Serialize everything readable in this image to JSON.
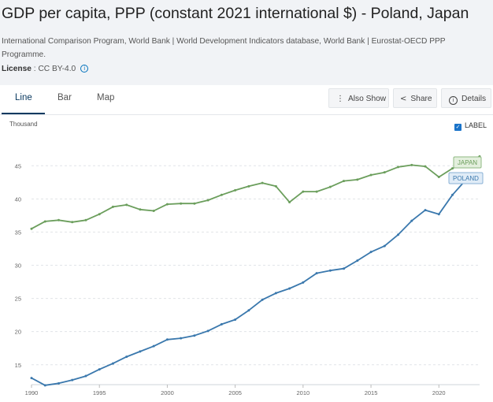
{
  "header": {
    "title": "GDP per capita, PPP (constant 2021 international $) - Poland, Japan",
    "source": "International Comparison Program, World Bank | World Development Indicators database, World Bank | Eurostat-OECD PPP Programme.",
    "license_label": "License",
    "license_value": " : CC BY-4.0",
    "info_glyph": "i"
  },
  "tabs": [
    "Line",
    "Bar",
    "Map"
  ],
  "toolbar": {
    "also_show": "Also Show",
    "share": "Share",
    "details": "Details"
  },
  "icons": {
    "more": "⋮",
    "share": "<",
    "details": "i",
    "check": "✓"
  },
  "label_toggle": "LABEL",
  "colors": {
    "poland": "#3a78ad",
    "japan": "#6b9e5c"
  },
  "chart_data": {
    "type": "line",
    "ylabel": "Thousand",
    "xlim": [
      1990,
      2023
    ],
    "ylim": [
      12,
      48
    ],
    "yticks": [
      15,
      20,
      25,
      30,
      35,
      40,
      45
    ],
    "xticks": [
      1990,
      1995,
      2000,
      2005,
      2010,
      2015,
      2020
    ],
    "x": [
      1990,
      1991,
      1992,
      1993,
      1994,
      1995,
      1996,
      1997,
      1998,
      1999,
      2000,
      2001,
      2002,
      2003,
      2004,
      2005,
      2006,
      2007,
      2008,
      2009,
      2010,
      2011,
      2012,
      2013,
      2014,
      2015,
      2016,
      2017,
      2018,
      2019,
      2020,
      2021,
      2022,
      2023
    ],
    "series": [
      {
        "name": "POLAND",
        "values": [
          13.0,
          11.9,
          12.2,
          12.7,
          13.3,
          14.3,
          15.2,
          16.2,
          17.0,
          17.8,
          18.8,
          19.0,
          19.4,
          20.1,
          21.1,
          21.8,
          23.2,
          24.8,
          25.8,
          26.5,
          27.4,
          28.8,
          29.2,
          29.5,
          30.7,
          32.0,
          32.9,
          34.6,
          36.7,
          38.3,
          37.7,
          40.6,
          42.9,
          43.5
        ]
      },
      {
        "name": "JAPAN",
        "values": [
          35.5,
          36.6,
          36.8,
          36.5,
          36.8,
          37.7,
          38.8,
          39.1,
          38.4,
          38.2,
          39.2,
          39.3,
          39.3,
          39.8,
          40.6,
          41.3,
          41.9,
          42.4,
          41.9,
          39.5,
          41.1,
          41.1,
          41.8,
          42.7,
          42.9,
          43.6,
          44.0,
          44.8,
          45.1,
          44.9,
          43.3,
          44.6,
          45.5,
          46.4
        ]
      }
    ]
  }
}
